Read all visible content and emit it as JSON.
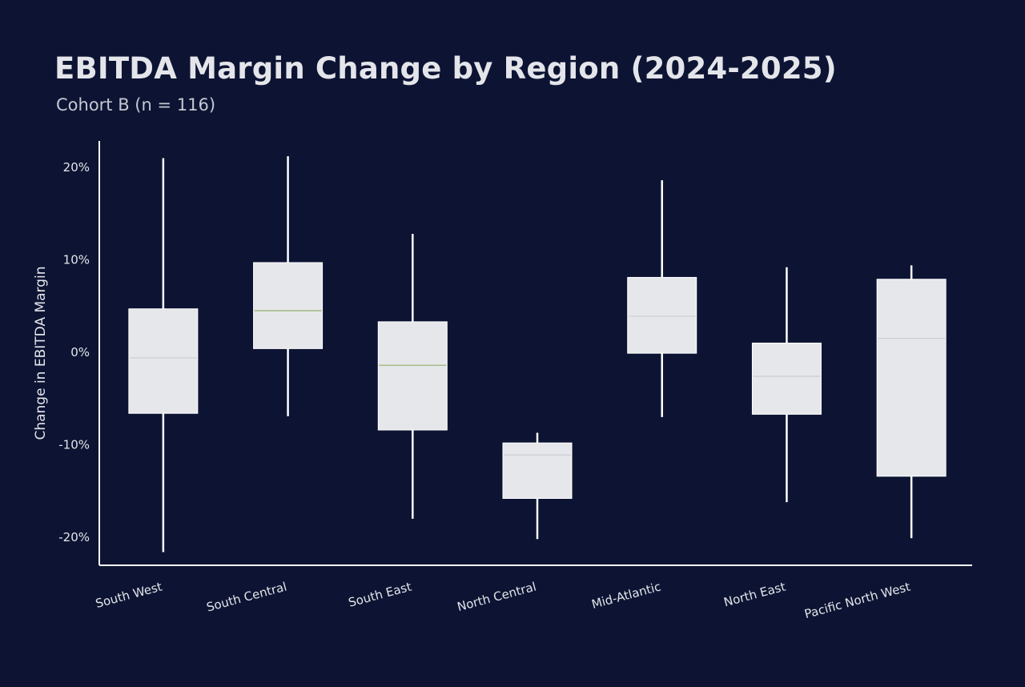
{
  "chart_data": {
    "type": "box",
    "title": "EBITDA Margin Change by Region (2024-2025)",
    "subtitle": "Cohort B (n = 116)",
    "xlabel": "",
    "ylabel": "Change in EBITDA Margin",
    "ylim": [
      -23,
      23
    ],
    "yticks": [
      -20,
      -10,
      0,
      10,
      20
    ],
    "ytick_labels": [
      "-20%",
      "-10%",
      "0%",
      "10%",
      "20%"
    ],
    "grid": false,
    "colors": {
      "background": "#0d1433",
      "box_fill": "#e6e7eb",
      "whisker": "#ffffff",
      "axis": "#ffffff",
      "median_green": "#8fae6a",
      "median_gray": "#c9cbd1"
    },
    "categories": [
      "South West",
      "South Central",
      "South East",
      "North Central",
      "Mid-Atlantic",
      "North East",
      "Pacific North West"
    ],
    "boxes": [
      {
        "min": -21.6,
        "q1": -6.6,
        "median": -0.6,
        "q3": 4.7,
        "max": 21.0,
        "median_color": "#c9cbd1"
      },
      {
        "min": -6.9,
        "q1": 0.4,
        "median": 4.5,
        "q3": 9.7,
        "max": 21.2,
        "median_color": "#8fae6a"
      },
      {
        "min": -18.0,
        "q1": -8.4,
        "median": -1.4,
        "q3": 3.3,
        "max": 12.8,
        "median_color": "#8fae6a"
      },
      {
        "min": -20.2,
        "q1": -15.8,
        "median": -11.1,
        "q3": -9.8,
        "max": -8.7,
        "median_color": "#c9cbd1"
      },
      {
        "min": -7.0,
        "q1": -0.1,
        "median": 3.9,
        "q3": 8.1,
        "max": 18.6,
        "median_color": "#c9cbd1"
      },
      {
        "min": -16.2,
        "q1": -6.7,
        "median": -2.6,
        "q3": 1.0,
        "max": 9.2,
        "median_color": "#c9cbd1"
      },
      {
        "min": -20.1,
        "q1": -13.4,
        "median": 1.5,
        "q3": 7.9,
        "max": 9.4,
        "median_color": "#c9cbd1"
      }
    ]
  }
}
